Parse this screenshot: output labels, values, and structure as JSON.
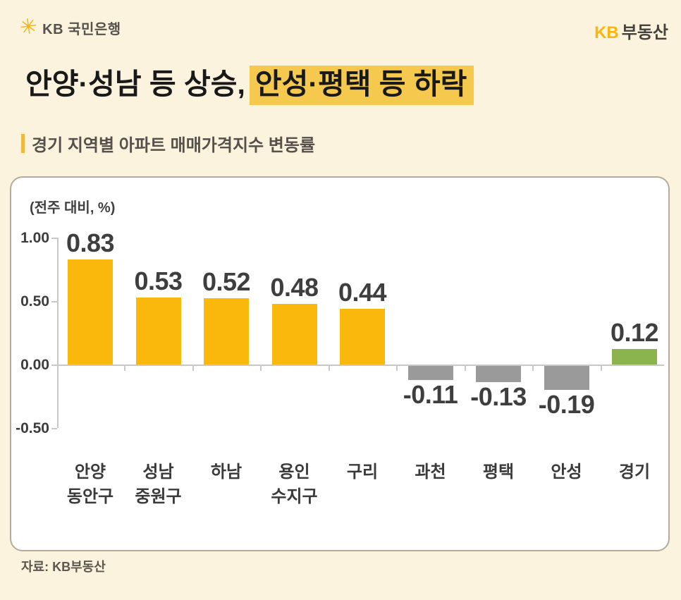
{
  "header": {
    "brand_left": "KB 국민은행",
    "brand_right_kb": "KB",
    "brand_right_suffix": "부동산"
  },
  "title": {
    "plain": "안양·성남 등 상승,",
    "highlight": "안성·평택 등 하락"
  },
  "subtitle": "경기 지역별 아파트 매매가격지수 변동률",
  "source": "자료: KB부동산",
  "colors": {
    "background": "#FBF3DE",
    "panel_bg": "#FFFFFF",
    "panel_border": "#B3AC9D",
    "highlight": "#F5C94E",
    "brand_yellow": "#FBB60B",
    "bar_positive": "#FBB80C",
    "bar_negative": "#9A9A9A",
    "bar_total": "#8CB44E",
    "axis": "#C8C8C8"
  },
  "chart_data": {
    "type": "bar",
    "title": "경기 지역별 아파트 매매가격지수 변동률",
    "unit_label": "(전주 대비, %)",
    "categories": [
      [
        "안양",
        "동안구"
      ],
      [
        "성남",
        "중원구"
      ],
      [
        "하남"
      ],
      [
        "용인",
        "수지구"
      ],
      [
        "구리"
      ],
      [
        "과천"
      ],
      [
        "평택"
      ],
      [
        "안성"
      ],
      [
        "경기"
      ]
    ],
    "values": [
      0.83,
      0.53,
      0.52,
      0.48,
      0.44,
      -0.11,
      -0.13,
      -0.19,
      0.12
    ],
    "value_labels": [
      "0.83",
      "0.53",
      "0.52",
      "0.48",
      "0.44",
      "-0.11",
      "-0.13",
      "-0.19",
      "0.12"
    ],
    "bar_types": [
      "positive",
      "positive",
      "positive",
      "positive",
      "positive",
      "negative",
      "negative",
      "negative",
      "total"
    ],
    "yticks": [
      1.0,
      0.5,
      0.0,
      -0.5
    ],
    "ytick_labels": [
      "1.00",
      "0.50",
      "0.00",
      "-0.50"
    ],
    "ylim": [
      -0.5,
      1.0
    ],
    "grid": false,
    "legend": false,
    "xlabel": "",
    "ylabel": "(전주 대비, %)"
  }
}
